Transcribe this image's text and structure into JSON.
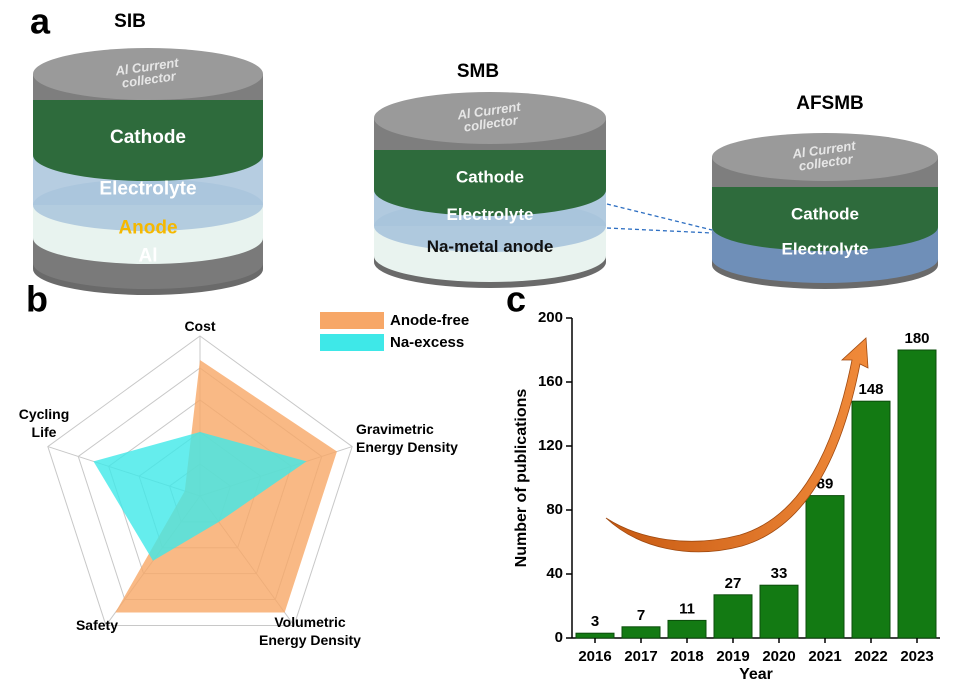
{
  "panel_labels": [
    "a",
    "b",
    "c"
  ],
  "diagram": {
    "cells": [
      {
        "title": "SIB",
        "cap": "Al Current\ncollector",
        "layers": [
          "Cathode",
          "Electrolyte",
          "Anode",
          "Al"
        ]
      },
      {
        "title": "SMB",
        "cap": "Al Current\ncollector",
        "layers": [
          "Cathode",
          "Electrolyte",
          "Na-metal anode"
        ]
      },
      {
        "title": "AFSMB",
        "cap": "Al Current\ncollector",
        "layers": [
          "Cathode",
          "Electrolyte"
        ]
      }
    ]
  },
  "chart_data": [
    {
      "type": "radar",
      "categories": [
        "Cost",
        "Gravimetric\nEnergy Density",
        "Volumetric\nEnergy Density",
        "Safety",
        "Cycling\nLife"
      ],
      "rlim": [
        0,
        1
      ],
      "rticks": [
        0.2,
        0.4,
        0.6,
        0.8,
        1
      ],
      "series": [
        {
          "name": "Anode-free",
          "color": "#f7a767",
          "values": [
            0.85,
            0.9,
            0.9,
            0.9,
            0.1
          ]
        },
        {
          "name": "Na-excess",
          "color": "#3ee8e8",
          "values": [
            0.4,
            0.7,
            0.2,
            0.5,
            0.7
          ]
        }
      ]
    },
    {
      "type": "bar",
      "categories": [
        "2016",
        "2017",
        "2018",
        "2019",
        "2020",
        "2021",
        "2022",
        "2023"
      ],
      "values": [
        3,
        7,
        11,
        27,
        33,
        89,
        148,
        180
      ],
      "color": "#137a13",
      "ylim": [
        0,
        200
      ],
      "yticks": [
        0,
        40,
        80,
        120,
        160,
        200
      ],
      "y_label": "Number of publications",
      "x_label": "Year"
    }
  ]
}
